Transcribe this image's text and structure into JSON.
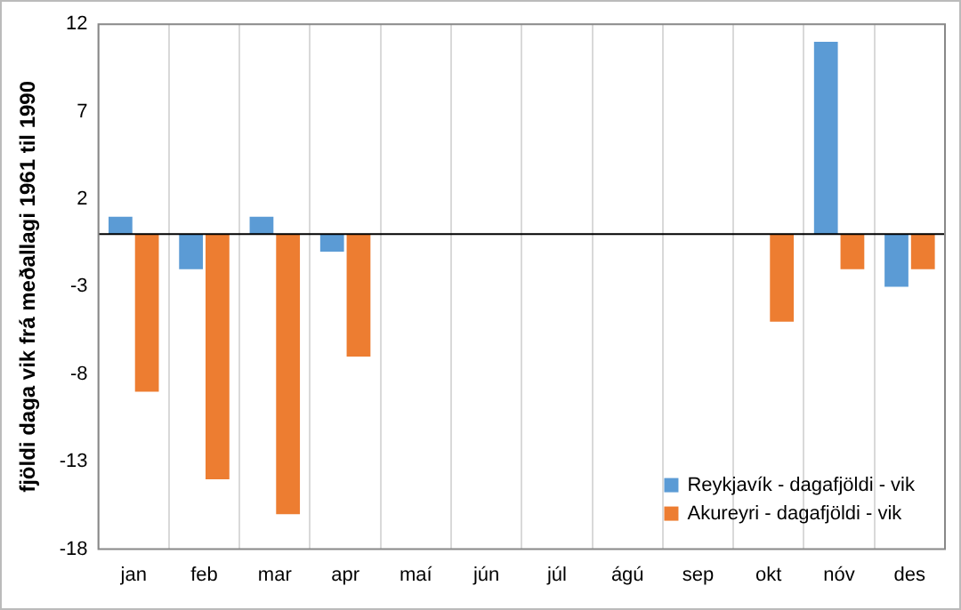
{
  "chart_data": {
    "type": "bar",
    "ylabel": "fjöldi daga vik frá meðallagi 1961 til 1990",
    "categories": [
      "jan",
      "feb",
      "mar",
      "apr",
      "maí",
      "jún",
      "júl",
      "ágú",
      "sep",
      "okt",
      "nóv",
      "des"
    ],
    "series": [
      {
        "name": "Reykjavík - dagafjöldi - vik",
        "color": "#5b9bd5",
        "values": [
          1,
          -2,
          1,
          -1,
          0,
          0,
          0,
          0,
          0,
          0,
          11,
          -3
        ]
      },
      {
        "name": "Akureyri - dagafjöldi - vik",
        "color": "#ed7d31",
        "values": [
          -9,
          -14,
          -16,
          -7,
          0,
          0,
          0,
          0,
          0,
          -5,
          -2,
          -2
        ]
      }
    ],
    "ylim": [
      -18,
      12
    ],
    "yticks": [
      12,
      7,
      2,
      -3,
      -8,
      -13,
      -18
    ],
    "grid": "x",
    "legend": "bottom right"
  }
}
